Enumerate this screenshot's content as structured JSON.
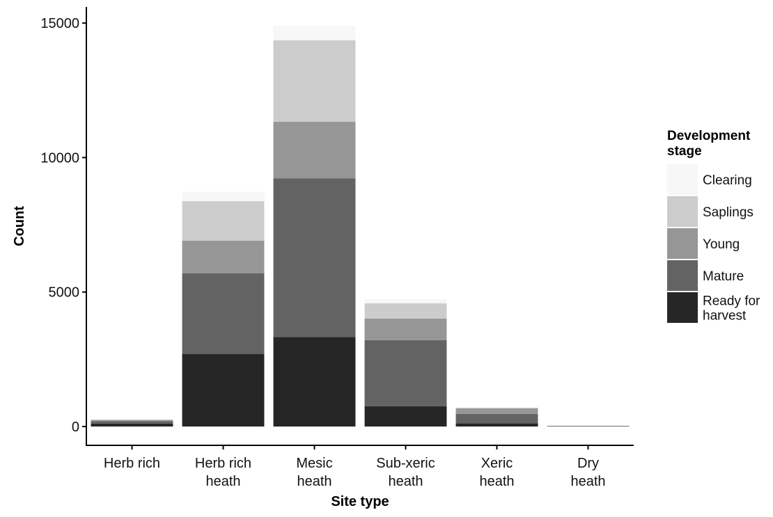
{
  "chart_data": {
    "type": "bar",
    "stacked": true,
    "categories": [
      [
        "Herb rich"
      ],
      [
        "Herb rich",
        "heath"
      ],
      [
        "Mesic",
        "heath"
      ],
      [
        "Sub-xeric",
        "heath"
      ],
      [
        "Xeric",
        "heath"
      ],
      [
        "Dry",
        "heath"
      ]
    ],
    "series": [
      {
        "name": "Ready for harvest",
        "name_lines": [
          "Ready for",
          "harvest"
        ],
        "color": "#262626",
        "values": [
          110,
          2700,
          3330,
          750,
          120,
          10
        ]
      },
      {
        "name": "Mature",
        "name_lines": [
          "Mature"
        ],
        "color": "#636363",
        "values": [
          90,
          3000,
          5900,
          2460,
          350,
          10
        ]
      },
      {
        "name": "Young",
        "name_lines": [
          "Young"
        ],
        "color": "#969696",
        "values": [
          40,
          1210,
          2100,
          800,
          200,
          5
        ]
      },
      {
        "name": "Saplings",
        "name_lines": [
          "Saplings"
        ],
        "color": "#cccccc",
        "values": [
          20,
          1470,
          3030,
          570,
          30,
          5
        ]
      },
      {
        "name": "Clearing",
        "name_lines": [
          "Clearing"
        ],
        "color": "#f7f7f7",
        "values": [
          10,
          350,
          530,
          150,
          10,
          5
        ]
      }
    ],
    "xlabel": "Site type",
    "ylabel": "Count",
    "ylim": [
      -700,
      15600
    ],
    "yticks": [
      0,
      5000,
      10000,
      15000
    ],
    "ytick_labels": [
      "0",
      "5000",
      "10000",
      "15000"
    ],
    "legend": {
      "title_lines": [
        "Development",
        "stage"
      ],
      "order": [
        "Clearing",
        "Saplings",
        "Young",
        "Mature",
        "Ready for harvest"
      ],
      "position": "right"
    },
    "grid": false
  }
}
